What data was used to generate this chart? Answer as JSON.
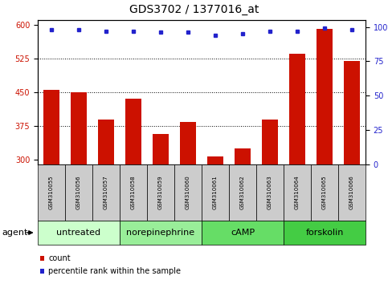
{
  "title": "GDS3702 / 1377016_at",
  "samples": [
    "GSM310055",
    "GSM310056",
    "GSM310057",
    "GSM310058",
    "GSM310059",
    "GSM310060",
    "GSM310061",
    "GSM310062",
    "GSM310063",
    "GSM310064",
    "GSM310065",
    "GSM310066"
  ],
  "counts": [
    455,
    450,
    390,
    435,
    358,
    385,
    308,
    325,
    390,
    535,
    590,
    520
  ],
  "percentiles": [
    98,
    98,
    97,
    97,
    96,
    96,
    94,
    95,
    97,
    97,
    99,
    98
  ],
  "ylim_left": [
    290,
    610
  ],
  "ylim_right": [
    0,
    105
  ],
  "yticks_left": [
    300,
    375,
    450,
    525,
    600
  ],
  "yticks_right": [
    0,
    25,
    50,
    75,
    100
  ],
  "bar_color": "#cc1100",
  "dot_color": "#2222cc",
  "bar_bottom": 290,
  "groups": [
    {
      "label": "untreated",
      "start": 0,
      "end": 3,
      "color": "#ccffcc"
    },
    {
      "label": "norepinephrine",
      "start": 3,
      "end": 6,
      "color": "#99ee99"
    },
    {
      "label": "cAMP",
      "start": 6,
      "end": 9,
      "color": "#66dd66"
    },
    {
      "label": "forskolin",
      "start": 9,
      "end": 12,
      "color": "#44cc44"
    }
  ],
  "agent_label": "agent",
  "legend_count_label": "count",
  "legend_percentile_label": "percentile rank within the sample",
  "grid_color": "#000000",
  "sample_box_color": "#cccccc",
  "title_fontsize": 10,
  "tick_fontsize": 7,
  "label_fontsize": 7,
  "sample_fontsize": 5,
  "group_fontsize": 8,
  "legend_fontsize": 7
}
